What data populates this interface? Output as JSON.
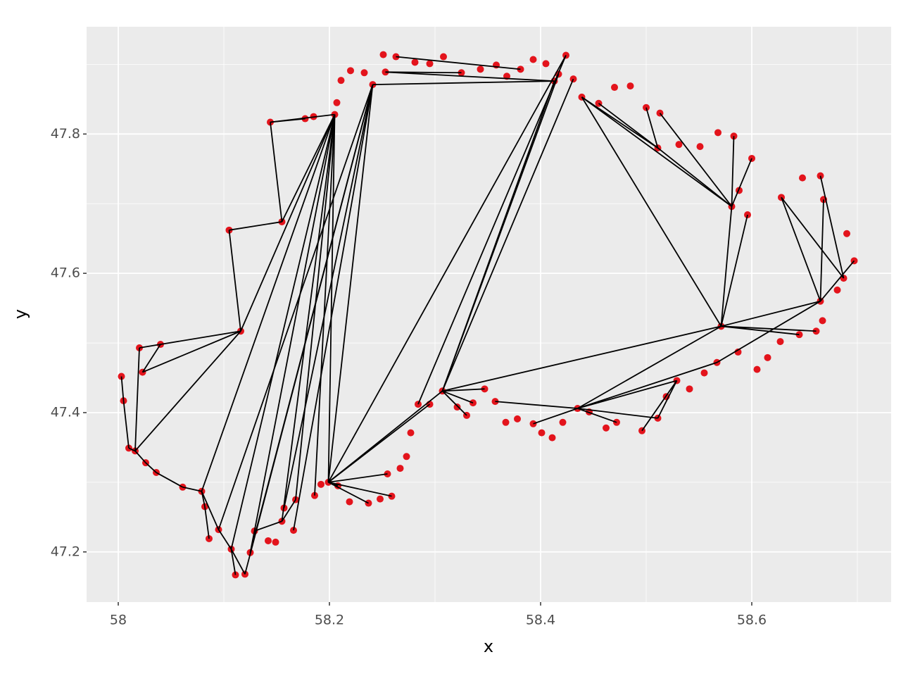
{
  "chart_data": {
    "type": "scatter",
    "xlabel": "x",
    "ylabel": "y",
    "xlim": [
      57.97,
      58.732
    ],
    "ylim": [
      47.128,
      47.954
    ],
    "xticks": [
      58,
      58.2,
      58.4,
      58.6
    ],
    "yticks": [
      47.2,
      47.4,
      47.6,
      47.8
    ],
    "xminor": [
      58.1,
      58.3,
      58.5,
      58.7
    ],
    "yminor": [
      47.3,
      47.5,
      47.7,
      47.9
    ],
    "grid": true,
    "color": "#e3141c",
    "segment_color": "#000000",
    "x": [
      58.003,
      58.005,
      58.01,
      58.016,
      58.026,
      58.036,
      58.061,
      58.079,
      58.082,
      58.086,
      58.095,
      58.107,
      58.111,
      58.12,
      58.125,
      58.129,
      58.142,
      58.149,
      58.155,
      58.166,
      58.157,
      58.168,
      58.186,
      58.192,
      58.208,
      58.219,
      58.237,
      58.248,
      58.259,
      58.255,
      58.267,
      58.273,
      58.277,
      58.284,
      58.295,
      58.307,
      58.321,
      58.33,
      58.336,
      58.347,
      58.357,
      58.367,
      58.378,
      58.393,
      58.401,
      58.411,
      58.421,
      58.435,
      58.446,
      58.462,
      58.472,
      58.496,
      58.511,
      58.519,
      58.529,
      58.541,
      58.555,
      58.567,
      58.571,
      58.587,
      58.605,
      58.615,
      58.627,
      58.645,
      58.661,
      58.667,
      58.665,
      58.681,
      58.687,
      58.697,
      58.69,
      58.668,
      58.665,
      58.648,
      58.628,
      58.596,
      58.581,
      58.588,
      58.6,
      58.583,
      58.568,
      58.551,
      58.531,
      58.511,
      58.513,
      58.5,
      58.485,
      58.47,
      58.455,
      58.439,
      58.431,
      58.424,
      58.417,
      58.405,
      58.393,
      58.381,
      58.368,
      58.358,
      58.343,
      58.325,
      58.308,
      58.295,
      58.281,
      58.263,
      58.251,
      58.253,
      58.241,
      58.233,
      58.22,
      58.211,
      58.207,
      58.205,
      58.185,
      58.177,
      58.144,
      58.155,
      58.105,
      58.116,
      58.04,
      58.02,
      58.023,
      58.199,
      58.413
    ],
    "y": [
      47.452,
      47.417,
      47.349,
      47.345,
      47.328,
      47.314,
      47.293,
      47.287,
      47.265,
      47.219,
      47.232,
      47.204,
      47.167,
      47.168,
      47.199,
      47.23,
      47.216,
      47.214,
      47.244,
      47.231,
      47.263,
      47.275,
      47.281,
      47.297,
      47.295,
      47.272,
      47.27,
      47.276,
      47.28,
      47.312,
      47.32,
      47.337,
      47.371,
      47.412,
      47.412,
      47.431,
      47.408,
      47.396,
      47.414,
      47.434,
      47.416,
      47.386,
      47.391,
      47.384,
      47.371,
      47.364,
      47.386,
      47.406,
      47.401,
      47.378,
      47.386,
      47.374,
      47.392,
      47.423,
      47.446,
      47.434,
      47.457,
      47.472,
      47.524,
      47.487,
      47.462,
      47.479,
      47.502,
      47.512,
      47.517,
      47.532,
      47.56,
      47.576,
      47.593,
      47.618,
      47.657,
      47.706,
      47.74,
      47.737,
      47.709,
      47.684,
      47.696,
      47.719,
      47.765,
      47.797,
      47.802,
      47.782,
      47.785,
      47.78,
      47.83,
      47.838,
      47.869,
      47.867,
      47.844,
      47.853,
      47.879,
      47.913,
      47.886,
      47.901,
      47.907,
      47.893,
      47.883,
      47.899,
      47.893,
      47.888,
      47.911,
      47.901,
      47.903,
      47.911,
      47.914,
      47.889,
      47.871,
      47.888,
      47.891,
      47.877,
      47.845,
      47.828,
      47.825,
      47.822,
      47.817,
      47.674,
      47.662,
      47.517,
      47.498,
      47.493,
      47.458,
      47.3,
      47.876
    ],
    "segments": [
      {
        "x": [
          58.003,
          58.005
        ],
        "y": [
          47.452,
          47.417
        ]
      },
      {
        "x": [
          58.005,
          58.01
        ],
        "y": [
          47.417,
          47.349
        ]
      },
      {
        "x": [
          58.02,
          58.016
        ],
        "y": [
          47.493,
          47.345
        ]
      },
      {
        "x": [
          58.023,
          58.116
        ],
        "y": [
          47.458,
          47.517
        ]
      },
      {
        "x": [
          58.02,
          58.116
        ],
        "y": [
          47.493,
          47.517
        ]
      },
      {
        "x": [
          58.04,
          58.023
        ],
        "y": [
          47.498,
          47.458
        ]
      },
      {
        "x": [
          58.016,
          58.116
        ],
        "y": [
          47.345,
          47.517
        ]
      },
      {
        "x": [
          58.01,
          58.016
        ],
        "y": [
          47.349,
          47.345
        ]
      },
      {
        "x": [
          58.016,
          58.026
        ],
        "y": [
          47.345,
          47.328
        ]
      },
      {
        "x": [
          58.026,
          58.036
        ],
        "y": [
          47.328,
          47.314
        ]
      },
      {
        "x": [
          58.036,
          58.061
        ],
        "y": [
          47.314,
          47.293
        ]
      },
      {
        "x": [
          58.061,
          58.079
        ],
        "y": [
          47.293,
          47.287
        ]
      },
      {
        "x": [
          58.079,
          58.082
        ],
        "y": [
          47.287,
          47.265
        ]
      },
      {
        "x": [
          58.082,
          58.086
        ],
        "y": [
          47.265,
          47.219
        ]
      },
      {
        "x": [
          58.079,
          58.095
        ],
        "y": [
          47.287,
          47.232
        ]
      },
      {
        "x": [
          58.095,
          58.107
        ],
        "y": [
          47.232,
          47.204
        ]
      },
      {
        "x": [
          58.107,
          58.111
        ],
        "y": [
          47.204,
          47.167
        ]
      },
      {
        "x": [
          58.107,
          58.12
        ],
        "y": [
          47.204,
          47.168
        ]
      },
      {
        "x": [
          58.125,
          58.129
        ],
        "y": [
          47.199,
          47.23
        ]
      },
      {
        "x": [
          58.129,
          58.155
        ],
        "y": [
          47.23,
          47.244
        ]
      },
      {
        "x": [
          58.155,
          58.168
        ],
        "y": [
          47.244,
          47.275
        ]
      },
      {
        "x": [
          58.116,
          58.105
        ],
        "y": [
          47.517,
          47.662
        ]
      },
      {
        "x": [
          58.105,
          58.155
        ],
        "y": [
          47.662,
          47.674
        ]
      },
      {
        "x": [
          58.155,
          58.144
        ],
        "y": [
          47.674,
          47.817
        ]
      },
      {
        "x": [
          58.144,
          58.205
        ],
        "y": [
          47.817,
          47.828
        ]
      },
      {
        "x": [
          58.155,
          58.205
        ],
        "y": [
          47.674,
          47.828
        ]
      },
      {
        "x": [
          58.116,
          58.205
        ],
        "y": [
          47.517,
          47.828
        ]
      },
      {
        "x": [
          58.144,
          58.177
        ],
        "y": [
          47.817,
          47.822
        ]
      },
      {
        "x": [
          58.205,
          58.079
        ],
        "y": [
          47.828,
          47.287
        ]
      },
      {
        "x": [
          58.205,
          58.107
        ],
        "y": [
          47.828,
          47.204
        ]
      },
      {
        "x": [
          58.205,
          58.129
        ],
        "y": [
          47.828,
          47.23
        ]
      },
      {
        "x": [
          58.205,
          58.155
        ],
        "y": [
          47.828,
          47.244
        ]
      },
      {
        "x": [
          58.205,
          58.168
        ],
        "y": [
          47.828,
          47.275
        ]
      },
      {
        "x": [
          58.205,
          58.186
        ],
        "y": [
          47.828,
          47.281
        ]
      },
      {
        "x": [
          58.205,
          58.199
        ],
        "y": [
          47.828,
          47.3
        ]
      },
      {
        "x": [
          58.241,
          58.095
        ],
        "y": [
          47.871,
          47.232
        ]
      },
      {
        "x": [
          58.241,
          58.12
        ],
        "y": [
          47.871,
          47.168
        ]
      },
      {
        "x": [
          58.241,
          58.125
        ],
        "y": [
          47.871,
          47.199
        ]
      },
      {
        "x": [
          58.241,
          58.157
        ],
        "y": [
          47.871,
          47.263
        ]
      },
      {
        "x": [
          58.241,
          58.199
        ],
        "y": [
          47.871,
          47.3
        ]
      },
      {
        "x": [
          58.241,
          58.166
        ],
        "y": [
          47.871,
          47.231
        ]
      },
      {
        "x": [
          58.241,
          58.413
        ],
        "y": [
          47.871,
          47.876
        ]
      },
      {
        "x": [
          58.253,
          58.413
        ],
        "y": [
          47.889,
          47.876
        ]
      },
      {
        "x": [
          58.263,
          58.381
        ],
        "y": [
          47.911,
          47.893
        ]
      },
      {
        "x": [
          58.253,
          58.325
        ],
        "y": [
          47.889,
          47.888
        ]
      },
      {
        "x": [
          58.199,
          58.295
        ],
        "y": [
          47.3,
          47.412
        ]
      },
      {
        "x": [
          58.199,
          58.307
        ],
        "y": [
          47.3,
          47.431
        ]
      },
      {
        "x": [
          58.199,
          58.424
        ],
        "y": [
          47.3,
          47.913
        ]
      },
      {
        "x": [
          58.199,
          58.255
        ],
        "y": [
          47.3,
          47.312
        ]
      },
      {
        "x": [
          58.199,
          58.259
        ],
        "y": [
          47.3,
          47.28
        ]
      },
      {
        "x": [
          58.199,
          58.237
        ],
        "y": [
          47.3,
          47.27
        ]
      },
      {
        "x": [
          58.199,
          58.208
        ],
        "y": [
          47.3,
          47.295
        ]
      },
      {
        "x": [
          58.307,
          58.413
        ],
        "y": [
          47.431,
          47.876
        ]
      },
      {
        "x": [
          58.307,
          58.431
        ],
        "y": [
          47.431,
          47.879
        ]
      },
      {
        "x": [
          58.307,
          58.417
        ],
        "y": [
          47.431,
          47.886
        ]
      },
      {
        "x": [
          58.284,
          58.424
        ],
        "y": [
          47.412,
          47.913
        ]
      },
      {
        "x": [
          58.307,
          58.571
        ],
        "y": [
          47.431,
          47.524
        ]
      },
      {
        "x": [
          58.307,
          58.347
        ],
        "y": [
          47.431,
          47.434
        ]
      },
      {
        "x": [
          58.439,
          58.571
        ],
        "y": [
          47.853,
          47.524
        ]
      },
      {
        "x": [
          58.439,
          58.581
        ],
        "y": [
          47.853,
          47.696
        ]
      },
      {
        "x": [
          58.439,
          58.511
        ],
        "y": [
          47.853,
          47.78
        ]
      },
      {
        "x": [
          58.511,
          58.581
        ],
        "y": [
          47.78,
          47.696
        ]
      },
      {
        "x": [
          58.513,
          58.581
        ],
        "y": [
          47.83,
          47.696
        ]
      },
      {
        "x": [
          58.583,
          58.581
        ],
        "y": [
          47.797,
          47.696
        ]
      },
      {
        "x": [
          58.6,
          58.581
        ],
        "y": [
          47.765,
          47.696
        ]
      },
      {
        "x": [
          58.455,
          58.511
        ],
        "y": [
          47.844,
          47.78
        ]
      },
      {
        "x": [
          58.5,
          58.511
        ],
        "y": [
          47.838,
          47.78
        ]
      },
      {
        "x": [
          58.571,
          58.596
        ],
        "y": [
          47.524,
          47.684
        ]
      },
      {
        "x": [
          58.571,
          58.581
        ],
        "y": [
          47.524,
          47.696
        ]
      },
      {
        "x": [
          58.571,
          58.665
        ],
        "y": [
          47.524,
          47.56
        ]
      },
      {
        "x": [
          58.665,
          58.628
        ],
        "y": [
          47.56,
          47.709
        ]
      },
      {
        "x": [
          58.665,
          58.668
        ],
        "y": [
          47.56,
          47.706
        ]
      },
      {
        "x": [
          58.665,
          58.697
        ],
        "y": [
          47.56,
          47.618
        ]
      },
      {
        "x": [
          58.687,
          58.628
        ],
        "y": [
          47.593,
          47.709
        ]
      },
      {
        "x": [
          58.687,
          58.665
        ],
        "y": [
          47.593,
          47.74
        ]
      },
      {
        "x": [
          58.571,
          58.661
        ],
        "y": [
          47.524,
          47.517
        ]
      },
      {
        "x": [
          58.571,
          58.645
        ],
        "y": [
          47.524,
          47.512
        ]
      },
      {
        "x": [
          58.567,
          58.665
        ],
        "y": [
          47.472,
          47.56
        ]
      },
      {
        "x": [
          58.435,
          58.571
        ],
        "y": [
          47.406,
          47.524
        ]
      },
      {
        "x": [
          58.435,
          58.567
        ],
        "y": [
          47.406,
          47.472
        ]
      },
      {
        "x": [
          58.435,
          58.529
        ],
        "y": [
          47.406,
          47.446
        ]
      },
      {
        "x": [
          58.435,
          58.393
        ],
        "y": [
          47.406,
          47.384
        ]
      },
      {
        "x": [
          58.435,
          58.472
        ],
        "y": [
          47.406,
          47.386
        ]
      },
      {
        "x": [
          58.435,
          58.511
        ],
        "y": [
          47.406,
          47.392
        ]
      },
      {
        "x": [
          58.357,
          58.435
        ],
        "y": [
          47.416,
          47.406
        ]
      },
      {
        "x": [
          58.529,
          58.511
        ],
        "y": [
          47.446,
          47.392
        ]
      },
      {
        "x": [
          58.529,
          58.496
        ],
        "y": [
          47.446,
          47.374
        ]
      },
      {
        "x": [
          58.307,
          58.336
        ],
        "y": [
          47.431,
          47.414
        ]
      },
      {
        "x": [
          58.307,
          58.33
        ],
        "y": [
          47.431,
          47.396
        ]
      }
    ]
  }
}
